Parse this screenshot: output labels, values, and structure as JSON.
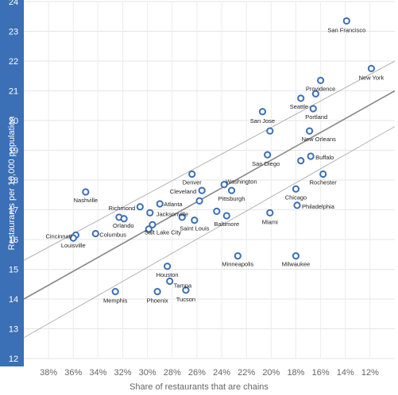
{
  "chart_data": {
    "type": "scatter",
    "title": "",
    "xlabel": "Share of restaurants that are chains",
    "ylabel": "Restaurants per 10,000 population",
    "x_reversed": true,
    "xlim": [
      40,
      10
    ],
    "ylim": [
      12,
      24
    ],
    "x_ticks": [
      38,
      36,
      34,
      32,
      30,
      28,
      26,
      24,
      22,
      20,
      18,
      16,
      14,
      12
    ],
    "x_tick_labels": [
      "38%",
      "36%",
      "34%",
      "32%",
      "30%",
      "28%",
      "26%",
      "24%",
      "22%",
      "20%",
      "18%",
      "16%",
      "14%",
      "12%"
    ],
    "y_ticks": [
      12,
      13,
      14,
      15,
      16,
      17,
      18,
      19,
      20,
      21,
      22,
      23,
      24
    ],
    "y_tick_labels": [
      "12",
      "13",
      "14",
      "15",
      "16",
      "17",
      "18",
      "19",
      "20",
      "21",
      "22",
      "23",
      "24"
    ],
    "grid": true,
    "point_color": "#3b6fb6",
    "axis_band_color": "#3b6fb6",
    "trend_color": "#888888",
    "trend_line": {
      "x1": 40,
      "y1": 14.0,
      "x2": 10,
      "y2": 21.0
    },
    "confidence_band": {
      "upper": {
        "x1": 40,
        "y1": 15.3,
        "x2": 10,
        "y2": 22.0
      },
      "lower": {
        "x1": 40,
        "y1": 12.7,
        "x2": 10,
        "y2": 19.8
      }
    },
    "points": [
      {
        "label": "San Francisco",
        "x": 13.9,
        "y": 23.35
      },
      {
        "label": "New York",
        "x": 11.9,
        "y": 21.75
      },
      {
        "label": "Providence",
        "x": 16.0,
        "y": 21.35
      },
      {
        "label": "Seattle",
        "x": 17.6,
        "y": 20.75
      },
      {
        "label": "",
        "x": 16.4,
        "y": 20.9
      },
      {
        "label": "Portland",
        "x": 16.6,
        "y": 20.4
      },
      {
        "label": "San Jose",
        "x": 20.7,
        "y": 20.3
      },
      {
        "label": "",
        "x": 20.1,
        "y": 19.65
      },
      {
        "label": "New Orleans",
        "x": 16.9,
        "y": 19.65
      },
      {
        "label": "Buffalo",
        "x": 16.8,
        "y": 18.8
      },
      {
        "label": "San Diego",
        "x": 20.3,
        "y": 18.85
      },
      {
        "label": "",
        "x": 17.6,
        "y": 18.65
      },
      {
        "label": "Rochester",
        "x": 15.8,
        "y": 18.2
      },
      {
        "label": "Denver",
        "x": 26.4,
        "y": 18.2
      },
      {
        "label": "Washington",
        "x": 23.8,
        "y": 17.85
      },
      {
        "label": "Cleveland",
        "x": 25.6,
        "y": 17.65
      },
      {
        "label": "Pittsburgh",
        "x": 23.2,
        "y": 17.65
      },
      {
        "label": "Chicago",
        "x": 18.0,
        "y": 17.7
      },
      {
        "label": "",
        "x": 25.8,
        "y": 17.3
      },
      {
        "label": "Philadelphia",
        "x": 17.9,
        "y": 17.15
      },
      {
        "label": "Nashville",
        "x": 35.0,
        "y": 17.6
      },
      {
        "label": "Richmond",
        "x": 30.6,
        "y": 17.1
      },
      {
        "label": "Atlanta",
        "x": 29.0,
        "y": 17.2
      },
      {
        "label": "Jacksonville",
        "x": 29.8,
        "y": 16.9
      },
      {
        "label": "",
        "x": 24.4,
        "y": 16.95
      },
      {
        "label": "Miami",
        "x": 20.1,
        "y": 16.9
      },
      {
        "label": "Orlando",
        "x": 32.3,
        "y": 16.75
      },
      {
        "label": "",
        "x": 31.9,
        "y": 16.7
      },
      {
        "label": "",
        "x": 27.2,
        "y": 16.75
      },
      {
        "label": "Saint Louis",
        "x": 26.2,
        "y": 16.65
      },
      {
        "label": "Baltimore",
        "x": 23.6,
        "y": 16.8
      },
      {
        "label": "Salt Lake City",
        "x": 29.6,
        "y": 16.5
      },
      {
        "label": "",
        "x": 29.9,
        "y": 16.35
      },
      {
        "label": "Columbus",
        "x": 34.2,
        "y": 16.2
      },
      {
        "label": "Cincinnati",
        "x": 35.8,
        "y": 16.15
      },
      {
        "label": "Louisville",
        "x": 36.0,
        "y": 16.05
      },
      {
        "label": "Minneapolis",
        "x": 22.7,
        "y": 15.45
      },
      {
        "label": "Milwaukee",
        "x": 18.0,
        "y": 15.45
      },
      {
        "label": "Houston",
        "x": 28.4,
        "y": 15.1
      },
      {
        "label": "Tampa",
        "x": 28.2,
        "y": 14.6
      },
      {
        "label": "Memphis",
        "x": 32.6,
        "y": 14.25
      },
      {
        "label": "Phoenix",
        "x": 29.2,
        "y": 14.25
      },
      {
        "label": "Tucson",
        "x": 26.9,
        "y": 14.3
      }
    ]
  }
}
